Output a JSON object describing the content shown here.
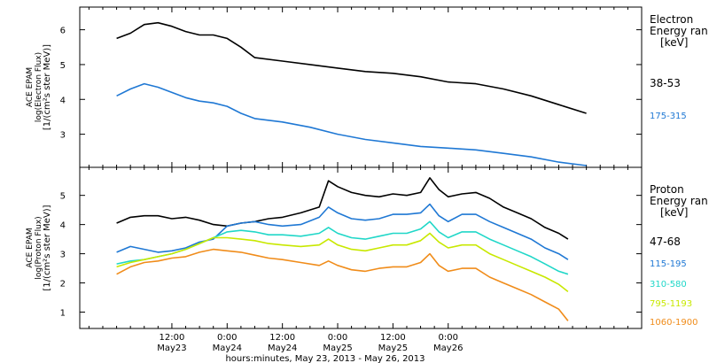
{
  "chart_data": [
    {
      "type": "line",
      "panel": "electron",
      "ylabel_lines": [
        "ACE EPAM",
        "log(Electron Flux)",
        "[1/(cm²s ster MeV)]"
      ],
      "ylim": [
        2.1,
        6.6
      ],
      "yticks": [
        3,
        4,
        5,
        6
      ],
      "legend_title": [
        "Electron",
        "Energy ran",
        "[keV]"
      ],
      "series": [
        {
          "name": "38-53",
          "color": "#000000",
          "points": [
            [
              0,
              5.75
            ],
            [
              3,
              5.9
            ],
            [
              6,
              6.15
            ],
            [
              9,
              6.2
            ],
            [
              12,
              6.1
            ],
            [
              15,
              5.95
            ],
            [
              18,
              5.85
            ],
            [
              21,
              5.85
            ],
            [
              24,
              5.75
            ],
            [
              27,
              5.5
            ],
            [
              30,
              5.2
            ],
            [
              36,
              5.1
            ],
            [
              42,
              5.0
            ],
            [
              48,
              4.9
            ],
            [
              54,
              4.8
            ],
            [
              60,
              4.75
            ],
            [
              66,
              4.65
            ],
            [
              72,
              4.5
            ],
            [
              78,
              4.45
            ],
            [
              84,
              4.3
            ],
            [
              90,
              4.1
            ],
            [
              96,
              3.85
            ],
            [
              102,
              3.6
            ]
          ]
        },
        {
          "name": "175-315",
          "color": "#1f78d4",
          "points": [
            [
              0,
              4.1
            ],
            [
              3,
              4.3
            ],
            [
              6,
              4.45
            ],
            [
              9,
              4.35
            ],
            [
              12,
              4.2
            ],
            [
              15,
              4.05
            ],
            [
              18,
              3.95
            ],
            [
              21,
              3.9
            ],
            [
              24,
              3.8
            ],
            [
              27,
              3.6
            ],
            [
              30,
              3.45
            ],
            [
              36,
              3.35
            ],
            [
              42,
              3.2
            ],
            [
              48,
              3.0
            ],
            [
              54,
              2.85
            ],
            [
              60,
              2.75
            ],
            [
              66,
              2.65
            ],
            [
              72,
              2.6
            ],
            [
              78,
              2.55
            ],
            [
              84,
              2.45
            ],
            [
              90,
              2.35
            ],
            [
              96,
              2.2
            ],
            [
              102,
              2.1
            ]
          ]
        }
      ]
    },
    {
      "type": "line",
      "panel": "proton",
      "ylabel_lines": [
        "ACE EPAM",
        "log(Proton Flux)",
        "[1/(cm²s ster MeV)]"
      ],
      "ylim": [
        0.5,
        5.9
      ],
      "yticks": [
        1,
        2,
        3,
        4,
        5
      ],
      "legend_title": [
        "Proton",
        "Energy ran",
        "[keV]"
      ],
      "series": [
        {
          "name": "47-68",
          "color": "#000000",
          "points": [
            [
              0,
              4.05
            ],
            [
              3,
              4.25
            ],
            [
              6,
              4.3
            ],
            [
              9,
              4.3
            ],
            [
              12,
              4.2
            ],
            [
              15,
              4.25
            ],
            [
              18,
              4.15
            ],
            [
              21,
              4.0
            ],
            [
              24,
              3.95
            ],
            [
              27,
              4.05
            ],
            [
              30,
              4.1
            ],
            [
              33,
              4.2
            ],
            [
              36,
              4.25
            ],
            [
              40,
              4.4
            ],
            [
              44,
              4.6
            ],
            [
              46,
              5.5
            ],
            [
              48,
              5.3
            ],
            [
              51,
              5.1
            ],
            [
              54,
              5.0
            ],
            [
              57,
              4.95
            ],
            [
              60,
              5.05
            ],
            [
              63,
              5.0
            ],
            [
              66,
              5.1
            ],
            [
              68,
              5.6
            ],
            [
              70,
              5.2
            ],
            [
              72,
              4.95
            ],
            [
              75,
              5.05
            ],
            [
              78,
              5.1
            ],
            [
              81,
              4.9
            ],
            [
              84,
              4.6
            ],
            [
              87,
              4.4
            ],
            [
              90,
              4.2
            ],
            [
              93,
              3.9
            ],
            [
              96,
              3.7
            ],
            [
              98,
              3.5
            ]
          ]
        },
        {
          "name": "115-195",
          "color": "#1f78d4",
          "points": [
            [
              0,
              3.05
            ],
            [
              3,
              3.25
            ],
            [
              6,
              3.15
            ],
            [
              9,
              3.05
            ],
            [
              12,
              3.1
            ],
            [
              15,
              3.2
            ],
            [
              18,
              3.4
            ],
            [
              21,
              3.5
            ],
            [
              24,
              3.95
            ],
            [
              27,
              4.05
            ],
            [
              30,
              4.1
            ],
            [
              33,
              4.0
            ],
            [
              36,
              3.95
            ],
            [
              40,
              4.0
            ],
            [
              44,
              4.25
            ],
            [
              46,
              4.6
            ],
            [
              48,
              4.4
            ],
            [
              51,
              4.2
            ],
            [
              54,
              4.15
            ],
            [
              57,
              4.2
            ],
            [
              60,
              4.35
            ],
            [
              63,
              4.35
            ],
            [
              66,
              4.4
            ],
            [
              68,
              4.7
            ],
            [
              70,
              4.3
            ],
            [
              72,
              4.1
            ],
            [
              75,
              4.35
            ],
            [
              78,
              4.35
            ],
            [
              81,
              4.1
            ],
            [
              84,
              3.9
            ],
            [
              87,
              3.7
            ],
            [
              90,
              3.5
            ],
            [
              93,
              3.2
            ],
            [
              96,
              3.0
            ],
            [
              98,
              2.8
            ]
          ]
        },
        {
          "name": "310-580",
          "color": "#20d7c8",
          "points": [
            [
              0,
              2.65
            ],
            [
              3,
              2.75
            ],
            [
              6,
              2.8
            ],
            [
              9,
              2.9
            ],
            [
              12,
              3.0
            ],
            [
              15,
              3.15
            ],
            [
              18,
              3.35
            ],
            [
              21,
              3.55
            ],
            [
              24,
              3.75
            ],
            [
              27,
              3.8
            ],
            [
              30,
              3.75
            ],
            [
              33,
              3.65
            ],
            [
              36,
              3.65
            ],
            [
              40,
              3.6
            ],
            [
              44,
              3.7
            ],
            [
              46,
              3.9
            ],
            [
              48,
              3.7
            ],
            [
              51,
              3.55
            ],
            [
              54,
              3.5
            ],
            [
              57,
              3.6
            ],
            [
              60,
              3.7
            ],
            [
              63,
              3.7
            ],
            [
              66,
              3.85
            ],
            [
              68,
              4.1
            ],
            [
              70,
              3.75
            ],
            [
              72,
              3.55
            ],
            [
              75,
              3.75
            ],
            [
              78,
              3.75
            ],
            [
              81,
              3.5
            ],
            [
              84,
              3.3
            ],
            [
              87,
              3.1
            ],
            [
              90,
              2.9
            ],
            [
              93,
              2.65
            ],
            [
              96,
              2.4
            ],
            [
              98,
              2.3
            ]
          ]
        },
        {
          "name": "795-1193",
          "color": "#c8e800",
          "points": [
            [
              0,
              2.55
            ],
            [
              3,
              2.7
            ],
            [
              6,
              2.8
            ],
            [
              9,
              2.9
            ],
            [
              12,
              3.0
            ],
            [
              15,
              3.15
            ],
            [
              18,
              3.35
            ],
            [
              21,
              3.55
            ],
            [
              24,
              3.55
            ],
            [
              27,
              3.5
            ],
            [
              30,
              3.45
            ],
            [
              33,
              3.35
            ],
            [
              36,
              3.3
            ],
            [
              40,
              3.25
            ],
            [
              44,
              3.3
            ],
            [
              46,
              3.5
            ],
            [
              48,
              3.3
            ],
            [
              51,
              3.15
            ],
            [
              54,
              3.1
            ],
            [
              57,
              3.2
            ],
            [
              60,
              3.3
            ],
            [
              63,
              3.3
            ],
            [
              66,
              3.45
            ],
            [
              68,
              3.7
            ],
            [
              70,
              3.4
            ],
            [
              72,
              3.2
            ],
            [
              75,
              3.3
            ],
            [
              78,
              3.3
            ],
            [
              81,
              3.0
            ],
            [
              84,
              2.8
            ],
            [
              87,
              2.6
            ],
            [
              90,
              2.4
            ],
            [
              93,
              2.2
            ],
            [
              96,
              1.95
            ],
            [
              98,
              1.7
            ]
          ]
        },
        {
          "name": "1060-1900",
          "color": "#f08c1a",
          "points": [
            [
              0,
              2.3
            ],
            [
              3,
              2.55
            ],
            [
              6,
              2.7
            ],
            [
              9,
              2.75
            ],
            [
              12,
              2.85
            ],
            [
              15,
              2.9
            ],
            [
              18,
              3.05
            ],
            [
              21,
              3.15
            ],
            [
              24,
              3.1
            ],
            [
              27,
              3.05
            ],
            [
              30,
              2.95
            ],
            [
              33,
              2.85
            ],
            [
              36,
              2.8
            ],
            [
              40,
              2.7
            ],
            [
              44,
              2.6
            ],
            [
              46,
              2.75
            ],
            [
              48,
              2.6
            ],
            [
              51,
              2.45
            ],
            [
              54,
              2.4
            ],
            [
              57,
              2.5
            ],
            [
              60,
              2.55
            ],
            [
              63,
              2.55
            ],
            [
              66,
              2.7
            ],
            [
              68,
              3.0
            ],
            [
              70,
              2.6
            ],
            [
              72,
              2.4
            ],
            [
              75,
              2.5
            ],
            [
              78,
              2.5
            ],
            [
              81,
              2.2
            ],
            [
              84,
              2.0
            ],
            [
              87,
              1.8
            ],
            [
              90,
              1.6
            ],
            [
              93,
              1.35
            ],
            [
              96,
              1.1
            ],
            [
              98,
              0.7
            ]
          ]
        }
      ]
    }
  ],
  "x_axis": {
    "range_hours": [
      -8,
      114
    ],
    "ticks": [
      {
        "hours": 12,
        "time": "12:00",
        "date": "May23"
      },
      {
        "hours": 24,
        "time": "0:00",
        "date": "May24"
      },
      {
        "hours": 36,
        "time": "12:00",
        "date": "May24"
      },
      {
        "hours": 48,
        "time": "0:00",
        "date": "May25"
      },
      {
        "hours": 60,
        "time": "12:00",
        "date": "May25"
      },
      {
        "hours": 72,
        "time": "0:00",
        "date": "May26"
      }
    ],
    "label": "hours:minutes, May 23, 2013 - May 26, 2013"
  }
}
